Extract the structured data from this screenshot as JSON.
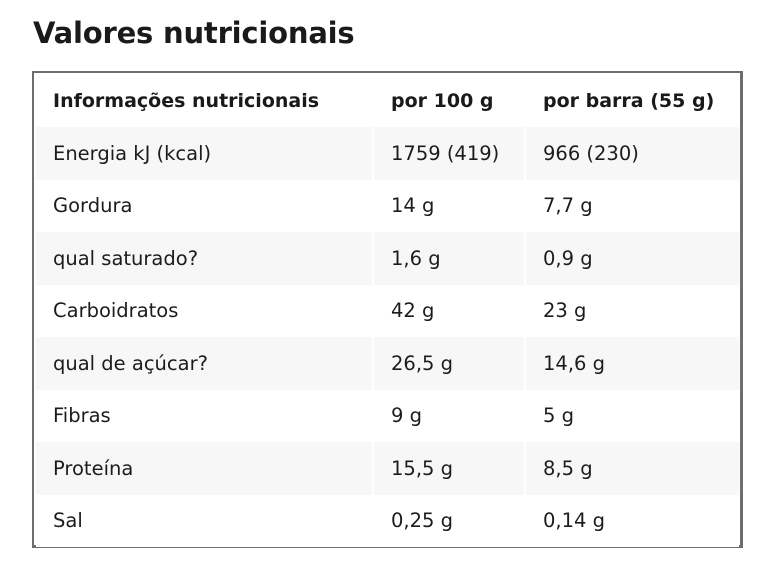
{
  "page": {
    "title": "Valores nutricionais"
  },
  "table": {
    "headers": [
      "Informações nutricionais",
      "por 100 g",
      "por barra (55 g)"
    ],
    "rows": [
      [
        "Energia kJ (kcal)",
        "1759 (419)",
        "966 (230)"
      ],
      [
        "Gordura",
        "14 g",
        "7,7 g"
      ],
      [
        "qual saturado?",
        "1,6 g",
        "0,9 g"
      ],
      [
        "Carboidratos",
        "42 g",
        "23 g"
      ],
      [
        "qual de açúcar?",
        "26,5 g",
        "14,6 g"
      ],
      [
        "Fibras",
        "9 g",
        "5 g"
      ],
      [
        "Proteína",
        "15,5 g",
        "8,5 g"
      ],
      [
        "Sal",
        "0,25 g",
        "0,14 g"
      ]
    ]
  }
}
